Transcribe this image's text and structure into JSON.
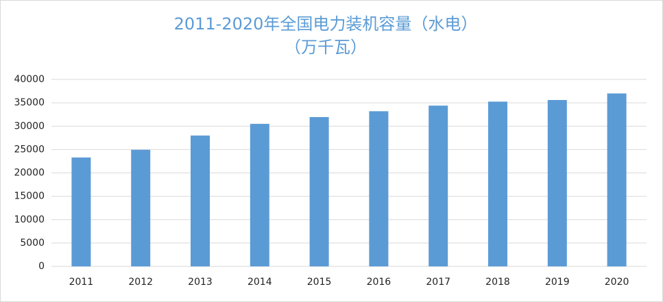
{
  "chart_data": {
    "type": "bar",
    "title": "2011-2020年全国电力装机容量（水电）",
    "subtitle": "（万千瓦）",
    "categories": [
      "2011",
      "2012",
      "2013",
      "2014",
      "2015",
      "2016",
      "2017",
      "2018",
      "2019",
      "2020"
    ],
    "values": [
      23300,
      24950,
      28000,
      30500,
      31950,
      33200,
      34400,
      35250,
      35600,
      37000
    ],
    "color": "#5b9bd5",
    "ylim": [
      0,
      40000
    ],
    "yticks": [
      0,
      5000,
      10000,
      15000,
      20000,
      25000,
      30000,
      35000,
      40000
    ],
    "grid": true
  }
}
